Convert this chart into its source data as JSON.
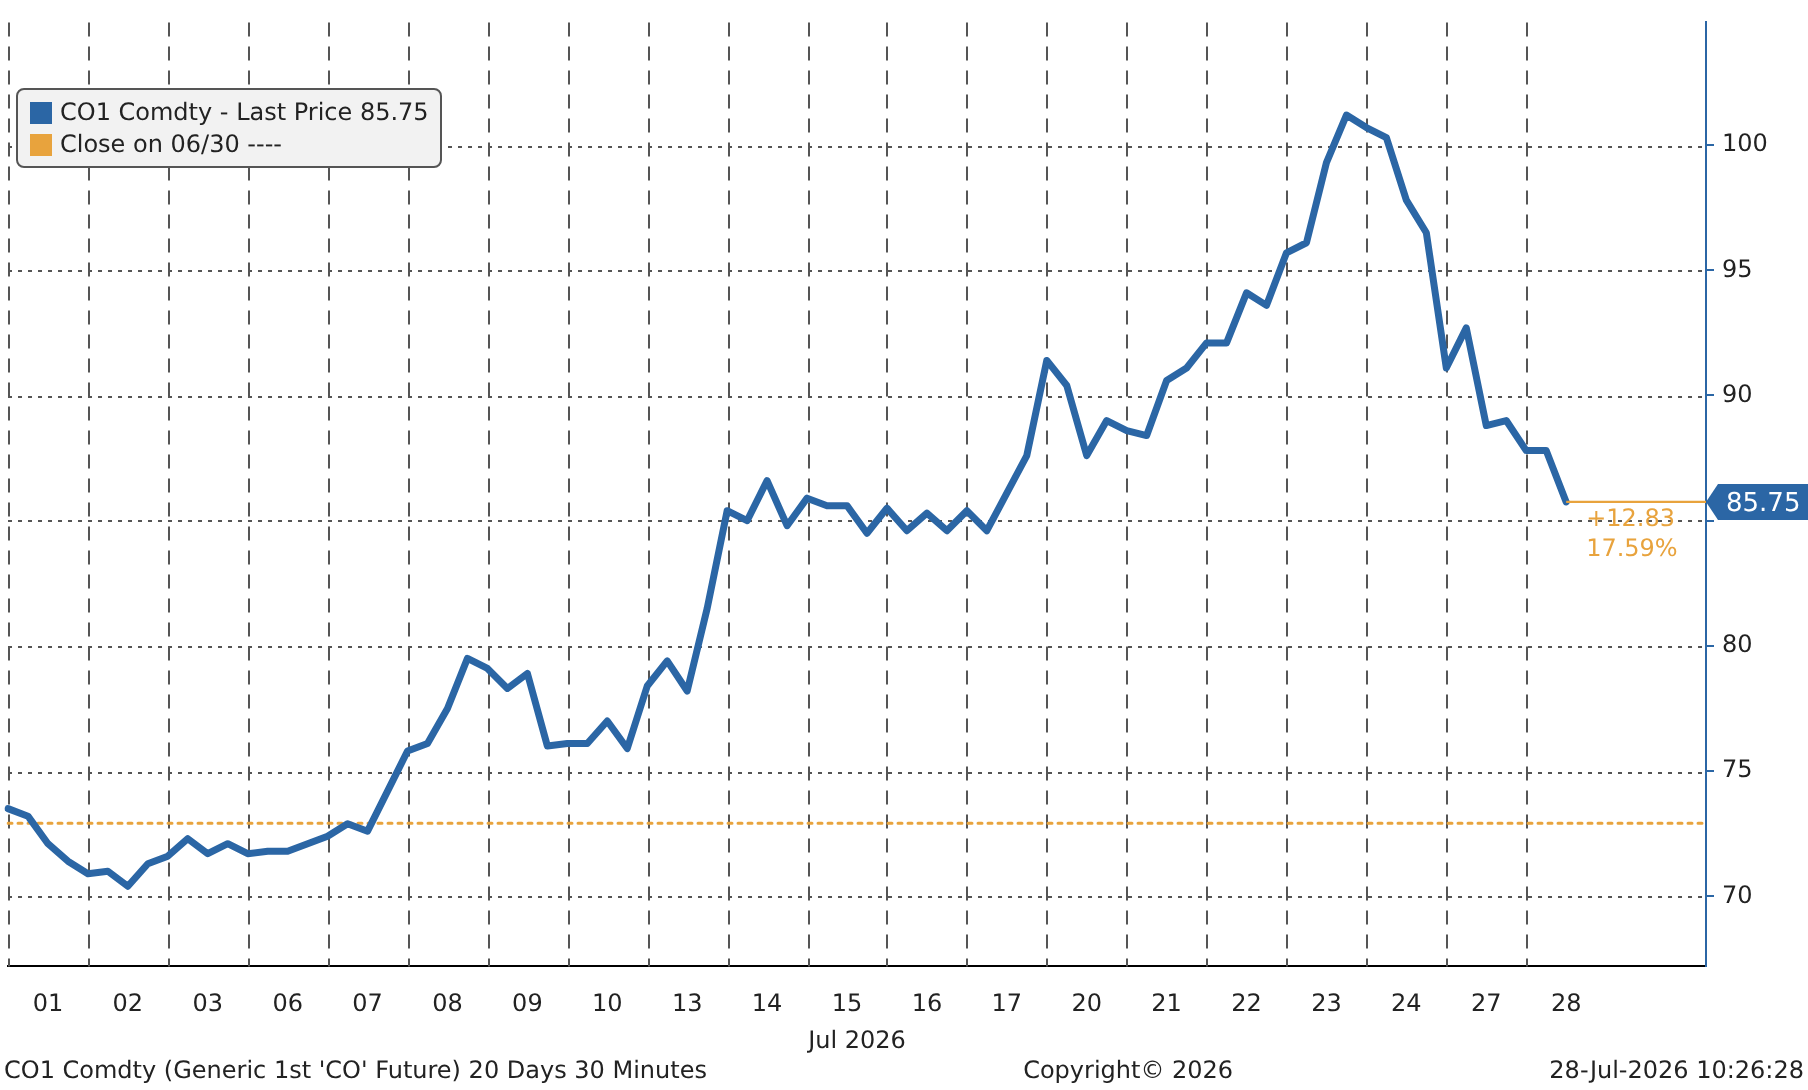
{
  "chart_data": {
    "type": "line",
    "xlabel": "Jul 2026",
    "categories": [
      null,
      null,
      "01",
      null,
      null,
      null,
      "02",
      null,
      null,
      null,
      "03",
      null,
      null,
      null,
      "06",
      null,
      null,
      null,
      "07",
      null,
      null,
      null,
      "08",
      null,
      null,
      null,
      "09",
      null,
      null,
      null,
      "10",
      null,
      null,
      null,
      "13",
      null,
      null,
      null,
      "14",
      null,
      null,
      null,
      "15",
      null,
      null,
      null,
      "16",
      null,
      null,
      null,
      "17",
      null,
      null,
      null,
      "20",
      null,
      null,
      null,
      "21",
      null,
      null,
      null,
      "22",
      null,
      null,
      null,
      "23",
      null,
      null,
      null,
      "24",
      null,
      null,
      null,
      "27",
      null,
      null,
      null,
      "28",
      null,
      null,
      null,
      null,
      null,
      null,
      null
    ],
    "series": [
      {
        "name": "CO1 Comdty - Last Price 85.75",
        "color": "#2b66a5",
        "line_style": "solid",
        "values": [
          73.5,
          73.2,
          72.1,
          71.4,
          70.9,
          71.0,
          70.4,
          71.3,
          71.6,
          72.3,
          71.7,
          72.1,
          71.7,
          71.8,
          71.8,
          72.1,
          72.4,
          72.9,
          72.6,
          74.2,
          75.8,
          76.1,
          77.5,
          79.5,
          79.1,
          78.3,
          78.9,
          76.0,
          76.1,
          76.1,
          77.0,
          75.9,
          78.4,
          79.4,
          78.2,
          81.5,
          85.4,
          85.0,
          86.6,
          84.8,
          85.9,
          85.6,
          85.6,
          84.5,
          85.5,
          84.6,
          85.3,
          84.6,
          85.4,
          84.6,
          86.1,
          87.6,
          91.4,
          90.4,
          87.6,
          89.0,
          88.6,
          88.4,
          90.6,
          91.1,
          92.1,
          92.1,
          94.1,
          93.6,
          95.7,
          96.1,
          99.3,
          101.2,
          100.7,
          100.3,
          97.8,
          96.5,
          91.1,
          92.7,
          88.8,
          89.0,
          87.8,
          87.8,
          85.75,
          null,
          null,
          null,
          null,
          null,
          null,
          null
        ]
      },
      {
        "name": "Close on 06/30 ----",
        "color": "#e8a33d",
        "line_style": "dotted",
        "values": [
          72.92,
          72.92,
          72.92,
          72.92,
          72.92,
          72.92,
          72.92,
          72.92,
          72.92,
          72.92,
          72.92,
          72.92,
          72.92,
          72.92,
          72.92,
          72.92,
          72.92,
          72.92,
          72.92,
          72.92,
          72.92,
          72.92,
          72.92,
          72.92,
          72.92,
          72.92,
          72.92,
          72.92,
          72.92,
          72.92,
          72.92,
          72.92,
          72.92,
          72.92,
          72.92,
          72.92,
          72.92,
          72.92,
          72.92,
          72.92,
          72.92,
          72.92,
          72.92,
          72.92,
          72.92,
          72.92,
          72.92,
          72.92,
          72.92,
          72.92,
          72.92,
          72.92,
          72.92,
          72.92,
          72.92,
          72.92,
          72.92,
          72.92,
          72.92,
          72.92,
          72.92,
          72.92,
          72.92,
          72.92,
          72.92,
          72.92,
          72.92,
          72.92,
          72.92,
          72.92,
          72.92,
          72.92,
          72.92,
          72.92,
          72.92,
          72.92,
          72.92,
          72.92,
          72.92,
          72.92,
          72.92,
          72.92,
          72.92,
          72.92,
          72.92,
          72.92
        ]
      }
    ],
    "ylim": [
      67.2,
      104.9
    ],
    "yticks": [
      70,
      75,
      80,
      {
        "value": 85,
        "label": null
      },
      90,
      95,
      100
    ],
    "grid": true,
    "legend": "top left",
    "marker": "none",
    "ref_lines": [
      {
        "axis": "y",
        "value": 85.75,
        "label": "85.75",
        "color": "#e8a33d"
      }
    ],
    "annotations": [
      {
        "text": "+12.83",
        "y": 85.75
      },
      {
        "text": "17.59%",
        "y": 85.75
      },
      "CO1 Comdty (Generic 1st 'CO' Future) 20 Days 30 Minutes",
      "Copyright© 2026",
      "28-Jul-2026 10:26:28"
    ]
  }
}
